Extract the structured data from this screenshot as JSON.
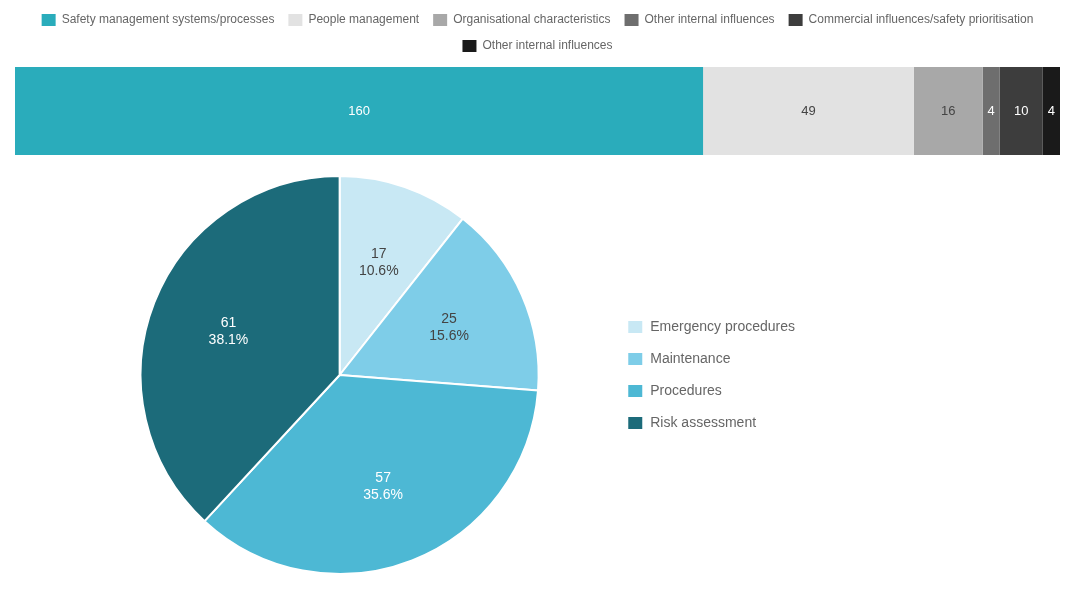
{
  "chart_data": [
    {
      "type": "bar",
      "orientation": "horizontal",
      "stacked": true,
      "categories": [
        null
      ],
      "series": [
        {
          "name": "Safety management systems/processes",
          "color": "#2aacbb",
          "values": [
            160
          ]
        },
        {
          "name": "People management",
          "color": "#e2e2e2",
          "values": [
            49
          ]
        },
        {
          "name": "Organisational characteristics",
          "color": "#a8a8a8",
          "values": [
            16
          ]
        },
        {
          "name": "Other internal influences",
          "color": "#6e6e6e",
          "values": [
            4
          ]
        },
        {
          "name": "Commercial influences/safety prioritisation",
          "color": "#3d3d3d",
          "values": [
            10
          ]
        },
        {
          "name": "Other internal influences",
          "color": "#1a1a1a",
          "values": [
            4
          ]
        }
      ],
      "xlim": [
        0,
        243
      ],
      "legend": "top",
      "data_labels": true,
      "tick_labels": false,
      "grid": false
    },
    {
      "type": "pie",
      "categories": [
        "Emergency procedures",
        "Maintenance",
        "Procedures",
        "Risk assessment"
      ],
      "values": [
        17,
        25,
        57,
        61
      ],
      "value_labels": [
        "17\n10.6%",
        "25\n15.6%",
        "57\n35.6%",
        "61\n38.1%"
      ],
      "colors": [
        "#c8e8f4",
        "#7ecde8",
        "#4db8d4",
        "#1c6b7a"
      ],
      "legend": "right",
      "data_labels": true
    }
  ]
}
